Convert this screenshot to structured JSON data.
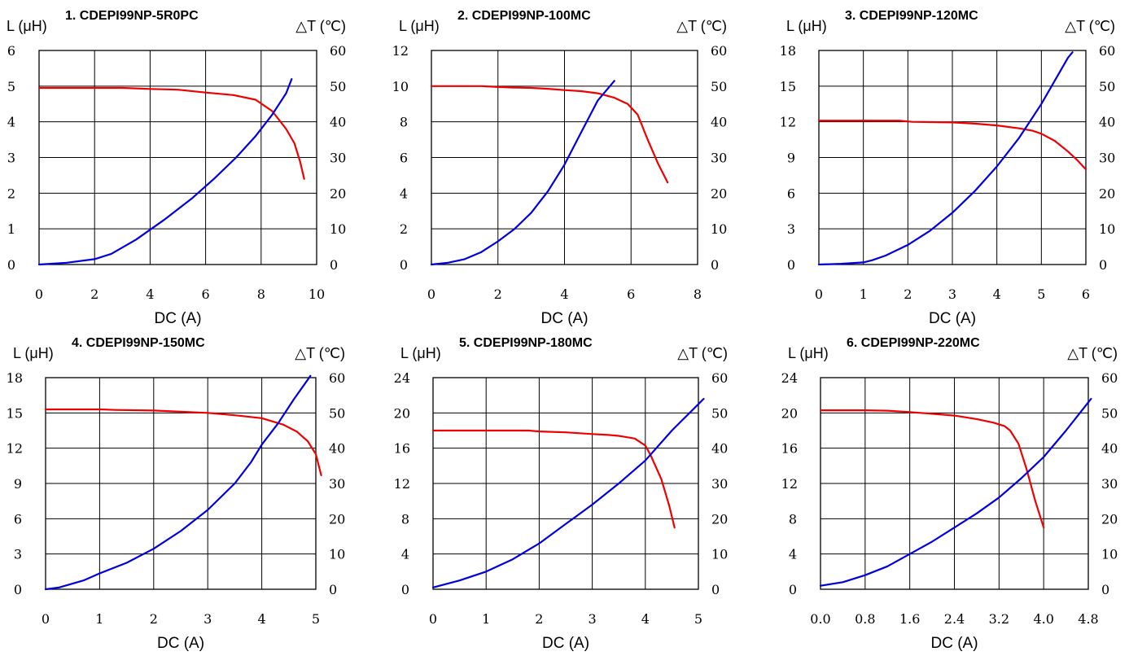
{
  "colors": {
    "inductance": "#ee0000",
    "temperature": "#0000dd"
  },
  "chart_data": [
    {
      "type": "line",
      "title": "1. CDEPI99NP-5R0PC",
      "xlabel": "DC (A)",
      "ylabel_left": "L (μH)",
      "ylabel_right": "△T (℃)",
      "xticks": [
        "0",
        "2",
        "4",
        "6",
        "8",
        "10"
      ],
      "xlim": [
        0,
        10
      ],
      "yticks_left": [
        "0",
        "1",
        "2",
        "3",
        "4",
        "5",
        "6"
      ],
      "ylim_left": [
        0,
        6
      ],
      "yticks_right": [
        "0",
        "10",
        "20",
        "30",
        "40",
        "50",
        "60"
      ],
      "ylim_right": [
        0,
        60
      ],
      "grid": true,
      "series": [
        {
          "axis": "left",
          "color": "#ee0000",
          "points": [
            [
              0,
              4.95
            ],
            [
              1,
              4.95
            ],
            [
              2,
              4.95
            ],
            [
              3,
              4.95
            ],
            [
              4,
              4.92
            ],
            [
              5,
              4.9
            ],
            [
              6,
              4.82
            ],
            [
              7,
              4.75
            ],
            [
              7.8,
              4.62
            ],
            [
              8.4,
              4.3
            ],
            [
              8.9,
              3.8
            ],
            [
              9.2,
              3.4
            ],
            [
              9.4,
              2.9
            ],
            [
              9.55,
              2.4
            ]
          ]
        },
        {
          "axis": "right",
          "color": "#0000dd",
          "points": [
            [
              0,
              0
            ],
            [
              1,
              0.5
            ],
            [
              2,
              1.5
            ],
            [
              2.6,
              3
            ],
            [
              3.5,
              7
            ],
            [
              4.5,
              12.5
            ],
            [
              5.5,
              18.5
            ],
            [
              6.3,
              24
            ],
            [
              7.1,
              30
            ],
            [
              7.8,
              36
            ],
            [
              8.4,
              42
            ],
            [
              8.9,
              48
            ],
            [
              9.1,
              52
            ]
          ]
        }
      ]
    },
    {
      "type": "line",
      "title": "2. CDEPI99NP-100MC",
      "xlabel": "DC (A)",
      "ylabel_left": "L (μH)",
      "ylabel_right": "△T (℃)",
      "xticks": [
        "0",
        "2",
        "4",
        "6",
        "8"
      ],
      "xlim": [
        0,
        8
      ],
      "yticks_left": [
        "0",
        "2",
        "4",
        "6",
        "8",
        "10",
        "12"
      ],
      "ylim_left": [
        0,
        12
      ],
      "yticks_right": [
        "0",
        "10",
        "20",
        "30",
        "40",
        "50",
        "60"
      ],
      "ylim_right": [
        0,
        60
      ],
      "grid": true,
      "series": [
        {
          "axis": "left",
          "color": "#ee0000",
          "points": [
            [
              0,
              10
            ],
            [
              1,
              10
            ],
            [
              1.5,
              10
            ],
            [
              2,
              9.95
            ],
            [
              2.5,
              9.92
            ],
            [
              3,
              9.9
            ],
            [
              3.5,
              9.85
            ],
            [
              4,
              9.78
            ],
            [
              4.5,
              9.72
            ],
            [
              5,
              9.6
            ],
            [
              5.5,
              9.35
            ],
            [
              5.9,
              9.0
            ],
            [
              6.2,
              8.4
            ],
            [
              6.5,
              7.0
            ],
            [
              6.8,
              5.7
            ],
            [
              7.1,
              4.6
            ]
          ]
        },
        {
          "axis": "right",
          "color": "#0000dd",
          "points": [
            [
              0,
              0
            ],
            [
              0.5,
              0.5
            ],
            [
              1,
              1.5
            ],
            [
              1.5,
              3.5
            ],
            [
              2,
              6.5
            ],
            [
              2.5,
              10
            ],
            [
              3,
              14.5
            ],
            [
              3.5,
              20.5
            ],
            [
              4,
              28
            ],
            [
              4.5,
              37
            ],
            [
              5,
              46
            ],
            [
              5.5,
              51.5
            ]
          ]
        }
      ]
    },
    {
      "type": "line",
      "title": "3. CDEPI99NP-120MC",
      "xlabel": "DC (A)",
      "ylabel_left": "L (μH)",
      "ylabel_right": "△T (℃)",
      "xticks": [
        "0",
        "1",
        "2",
        "3",
        "4",
        "5",
        "6"
      ],
      "xlim": [
        0,
        6
      ],
      "yticks_left": [
        "0",
        "3",
        "6",
        "9",
        "12",
        "15",
        "18"
      ],
      "ylim_left": [
        0,
        18
      ],
      "yticks_right": [
        "0",
        "10",
        "20",
        "30",
        "40",
        "50",
        "60"
      ],
      "ylim_right": [
        0,
        60
      ],
      "grid": true,
      "series": [
        {
          "axis": "left",
          "color": "#ee0000",
          "points": [
            [
              0,
              12.1
            ],
            [
              1,
              12.1
            ],
            [
              1.8,
              12.1
            ],
            [
              2.1,
              12.0
            ],
            [
              3,
              11.95
            ],
            [
              3.5,
              11.85
            ],
            [
              4,
              11.7
            ],
            [
              4.5,
              11.45
            ],
            [
              4.8,
              11.25
            ],
            [
              5,
              11.0
            ],
            [
              5.3,
              10.4
            ],
            [
              5.6,
              9.5
            ],
            [
              5.8,
              8.8
            ],
            [
              6,
              8.0
            ]
          ]
        },
        {
          "axis": "right",
          "color": "#0000dd",
          "points": [
            [
              0,
              0
            ],
            [
              0.5,
              0.2
            ],
            [
              1,
              0.6
            ],
            [
              1.2,
              1.2
            ],
            [
              1.5,
              2.5
            ],
            [
              2,
              5.5
            ],
            [
              2.5,
              9.5
            ],
            [
              3,
              14.5
            ],
            [
              3.5,
              20.5
            ],
            [
              4,
              27.5
            ],
            [
              4.5,
              35.5
            ],
            [
              5,
              45
            ],
            [
              5.3,
              51.5
            ],
            [
              5.6,
              58
            ],
            [
              5.7,
              59.5
            ]
          ]
        }
      ]
    },
    {
      "type": "line",
      "title": "4. CDEPI99NP-150MC",
      "xlabel": "DC (A)",
      "ylabel_left": "L (μH)",
      "ylabel_right": "△T (℃)",
      "xticks": [
        "0",
        "1",
        "2",
        "3",
        "4",
        "5"
      ],
      "xlim": [
        0,
        5
      ],
      "yticks_left": [
        "0",
        "3",
        "6",
        "9",
        "12",
        "15",
        "18"
      ],
      "ylim_left": [
        0,
        18
      ],
      "yticks_right": [
        "0",
        "10",
        "20",
        "30",
        "40",
        "50",
        "60"
      ],
      "ylim_right": [
        0,
        60
      ],
      "grid": true,
      "series": [
        {
          "axis": "left",
          "color": "#ee0000",
          "points": [
            [
              0,
              15.3
            ],
            [
              1,
              15.3
            ],
            [
              1.3,
              15.25
            ],
            [
              2,
              15.2
            ],
            [
              2.5,
              15.1
            ],
            [
              3,
              15.0
            ],
            [
              3.5,
              14.8
            ],
            [
              4,
              14.55
            ],
            [
              4.4,
              14.0
            ],
            [
              4.65,
              13.4
            ],
            [
              4.85,
              12.6
            ],
            [
              5,
              11.5
            ],
            [
              5.1,
              9.7
            ]
          ]
        },
        {
          "axis": "right",
          "color": "#0000dd",
          "points": [
            [
              0,
              0
            ],
            [
              0.25,
              0.5
            ],
            [
              0.7,
              2.5
            ],
            [
              1,
              4.5
            ],
            [
              1.5,
              7.5
            ],
            [
              2,
              11.5
            ],
            [
              2.5,
              16.5
            ],
            [
              3,
              22.5
            ],
            [
              3.5,
              30
            ],
            [
              3.8,
              36
            ],
            [
              4,
              41
            ],
            [
              4.3,
              47
            ],
            [
              4.6,
              54
            ],
            [
              4.9,
              60.5
            ]
          ]
        }
      ]
    },
    {
      "type": "line",
      "title": "5. CDEPI99NP-180MC",
      "xlabel": "DC (A)",
      "ylabel_left": "L (μH)",
      "ylabel_right": "△T (℃)",
      "xticks": [
        "0",
        "1",
        "2",
        "3",
        "4",
        "5"
      ],
      "xlim": [
        0,
        5
      ],
      "yticks_left": [
        "0",
        "4",
        "8",
        "12",
        "16",
        "20",
        "24"
      ],
      "ylim_left": [
        0,
        24
      ],
      "yticks_right": [
        "0",
        "10",
        "20",
        "30",
        "40",
        "50",
        "60"
      ],
      "ylim_right": [
        0,
        60
      ],
      "grid": true,
      "series": [
        {
          "axis": "left",
          "color": "#ee0000",
          "points": [
            [
              0,
              18
            ],
            [
              1,
              18
            ],
            [
              1.8,
              18
            ],
            [
              2,
              17.9
            ],
            [
              2.5,
              17.8
            ],
            [
              3,
              17.6
            ],
            [
              3.3,
              17.5
            ],
            [
              3.5,
              17.4
            ],
            [
              3.8,
              17.1
            ],
            [
              4.0,
              16.3
            ],
            [
              4.1,
              15.2
            ],
            [
              4.3,
              12.5
            ],
            [
              4.45,
              9.5
            ],
            [
              4.55,
              7.0
            ]
          ]
        },
        {
          "axis": "right",
          "color": "#0000dd",
          "points": [
            [
              0,
              0.5
            ],
            [
              0.5,
              2.5
            ],
            [
              1,
              5
            ],
            [
              1.5,
              8.5
            ],
            [
              2,
              13
            ],
            [
              2.5,
              18.5
            ],
            [
              3,
              24
            ],
            [
              3.5,
              30
            ],
            [
              4,
              36.5
            ],
            [
              4.5,
              45
            ],
            [
              5,
              52.5
            ],
            [
              5.1,
              54
            ]
          ]
        }
      ]
    },
    {
      "type": "line",
      "title": "6. CDEPI99NP-220MC",
      "xlabel": "DC (A)",
      "ylabel_left": "L (μH)",
      "ylabel_right": "△T (℃)",
      "xticks": [
        "0.0",
        "0.8",
        "1.6",
        "2.4",
        "3.2",
        "4.0",
        "4.8"
      ],
      "xlim": [
        0,
        4.8
      ],
      "yticks_left": [
        "0",
        "4",
        "8",
        "12",
        "16",
        "20",
        "24"
      ],
      "ylim_left": [
        0,
        24
      ],
      "yticks_right": [
        "0",
        "10",
        "20",
        "30",
        "40",
        "50",
        "60"
      ],
      "ylim_right": [
        0,
        60
      ],
      "grid": true,
      "series": [
        {
          "axis": "left",
          "color": "#ee0000",
          "points": [
            [
              0,
              20.3
            ],
            [
              0.8,
              20.3
            ],
            [
              1.2,
              20.25
            ],
            [
              1.6,
              20.1
            ],
            [
              2,
              19.9
            ],
            [
              2.4,
              19.7
            ],
            [
              2.8,
              19.3
            ],
            [
              3.1,
              18.9
            ],
            [
              3.3,
              18.5
            ],
            [
              3.4,
              18.0
            ],
            [
              3.55,
              16.5
            ],
            [
              3.7,
              13.5
            ],
            [
              3.85,
              10.0
            ],
            [
              4.0,
              7.0
            ]
          ]
        },
        {
          "axis": "right",
          "color": "#0000dd",
          "points": [
            [
              0,
              1
            ],
            [
              0.4,
              2
            ],
            [
              0.8,
              4
            ],
            [
              1.2,
              6.5
            ],
            [
              1.6,
              10
            ],
            [
              2,
              13.5
            ],
            [
              2.4,
              17.5
            ],
            [
              2.8,
              21.5
            ],
            [
              3.2,
              26
            ],
            [
              3.6,
              31.5
            ],
            [
              4,
              37.5
            ],
            [
              4.4,
              45
            ],
            [
              4.8,
              53
            ],
            [
              4.85,
              54
            ]
          ]
        }
      ]
    }
  ]
}
